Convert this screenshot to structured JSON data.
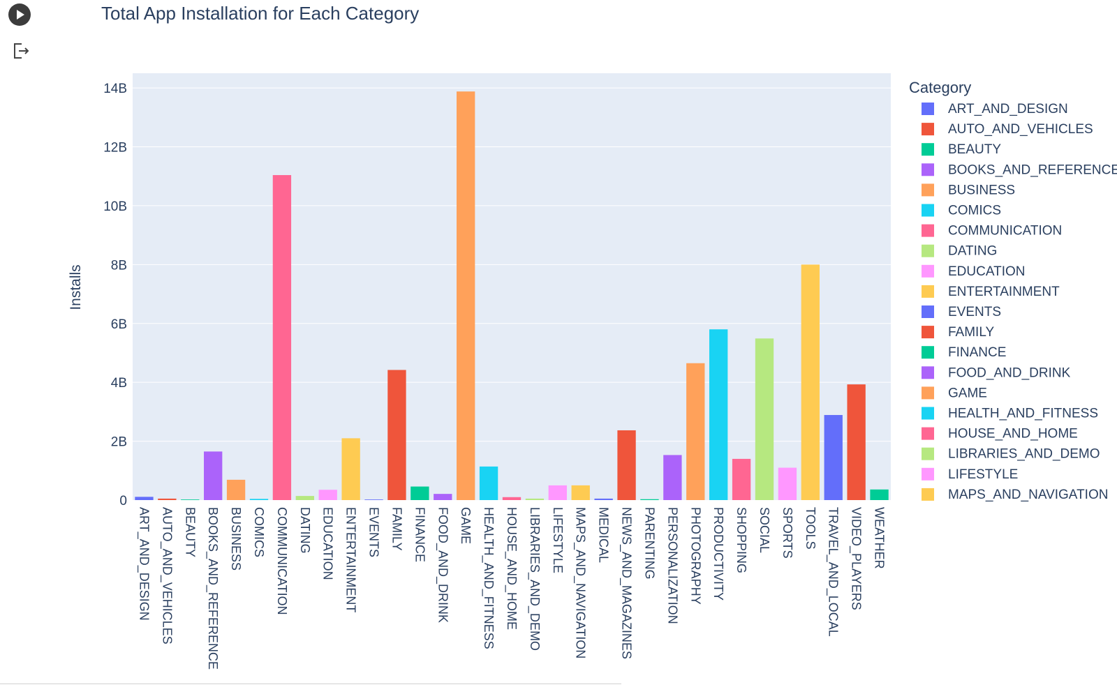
{
  "notebook": {
    "run_button_icon": "play-icon",
    "output_icon": "output-arrow-icon"
  },
  "chart_data": {
    "type": "bar",
    "title": "Total App Installation for Each Category",
    "xlabel": "",
    "ylabel": "Installs",
    "ylim": [
      0,
      14.5
    ],
    "y_unit": "B",
    "y_ticks": [
      0,
      2,
      4,
      6,
      8,
      10,
      12,
      14
    ],
    "y_tick_labels": [
      "0",
      "2B",
      "4B",
      "6B",
      "8B",
      "10B",
      "12B",
      "14B"
    ],
    "grid": true,
    "plot_bgcolor": "#e5ecf6",
    "legend": {
      "title": "Category",
      "placement": "right"
    },
    "palette": [
      "#636efa",
      "#ef553b",
      "#00cc96",
      "#ab63fa",
      "#ffa15a",
      "#19d3f3",
      "#ff6692",
      "#b6e880",
      "#ff97ff",
      "#fecb52"
    ],
    "categories": [
      "ART_AND_DESIGN",
      "AUTO_AND_VEHICLES",
      "BEAUTY",
      "BOOKS_AND_REFERENCE",
      "BUSINESS",
      "COMICS",
      "COMMUNICATION",
      "DATING",
      "EDUCATION",
      "ENTERTAINMENT",
      "EVENTS",
      "FAMILY",
      "FINANCE",
      "FOOD_AND_DRINK",
      "GAME",
      "HEALTH_AND_FITNESS",
      "HOUSE_AND_HOME",
      "LIBRARIES_AND_DEMO",
      "LIFESTYLE",
      "MAPS_AND_NAVIGATION",
      "MEDICAL",
      "NEWS_AND_MAGAZINES",
      "PARENTING",
      "PERSONALIZATION",
      "PHOTOGRAPHY",
      "PRODUCTIVITY",
      "SHOPPING",
      "SOCIAL",
      "SPORTS",
      "TOOLS",
      "TRAVEL_AND_LOCAL",
      "VIDEO_PLAYERS",
      "WEATHER"
    ],
    "values": [
      0.11,
      0.05,
      0.02,
      1.65,
      0.69,
      0.04,
      11.04,
      0.14,
      0.35,
      2.1,
      0.02,
      4.42,
      0.46,
      0.21,
      13.88,
      1.14,
      0.1,
      0.05,
      0.5,
      0.5,
      0.05,
      2.37,
      0.03,
      1.53,
      4.65,
      5.8,
      1.4,
      5.49,
      1.1,
      8.0,
      2.89,
      3.93,
      0.36
    ],
    "legend_entries": [
      "ART_AND_DESIGN",
      "AUTO_AND_VEHICLES",
      "BEAUTY",
      "BOOKS_AND_REFERENCE",
      "BUSINESS",
      "COMICS",
      "COMMUNICATION",
      "DATING",
      "EDUCATION",
      "ENTERTAINMENT",
      "EVENTS",
      "FAMILY",
      "FINANCE",
      "FOOD_AND_DRINK",
      "GAME",
      "HEALTH_AND_FITNESS",
      "HOUSE_AND_HOME",
      "LIBRARIES_AND_DEMO",
      "LIFESTYLE",
      "MAPS_AND_NAVIGATION"
    ]
  }
}
